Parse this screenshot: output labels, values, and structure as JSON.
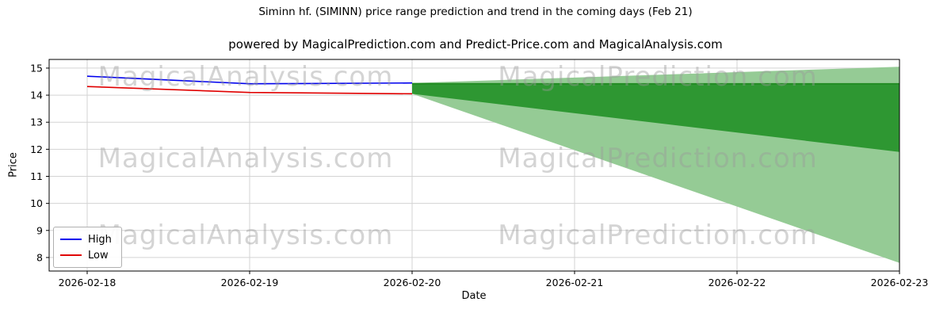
{
  "watermarks": {
    "analysis": "MagicalAnalysis.com",
    "prediction": "MagicalPrediction.com"
  },
  "chart_data": {
    "type": "line",
    "title": "Siminn hf. (SIMINN) price range prediction and trend in the coming days (Feb 21)",
    "subtitle": "powered by MagicalPrediction.com and Predict-Price.com and MagicalAnalysis.com",
    "xlabel": "Date",
    "ylabel": "Price",
    "x_tick_labels": [
      "2026-02-18",
      "2026-02-19",
      "2026-02-20",
      "2026-02-21",
      "2026-02-22",
      "2026-02-23"
    ],
    "y_ticks": [
      8,
      9,
      10,
      11,
      12,
      13,
      14,
      15
    ],
    "ylim": [
      7.5,
      15.32
    ],
    "grid": true,
    "legend_position": "lower left",
    "series": [
      {
        "name": "High",
        "color": "#0000ee",
        "x": [
          0,
          1,
          2
        ],
        "values": [
          14.7,
          14.42,
          14.45
        ]
      },
      {
        "name": "Low",
        "color": "#e00000",
        "x": [
          0,
          1,
          2
        ],
        "values": [
          14.32,
          14.1,
          14.05
        ]
      }
    ],
    "trend_line": {
      "name": "Trend",
      "color": "#1f8a1f",
      "x": [
        2,
        5
      ],
      "values": [
        14.42,
        14.42
      ]
    },
    "bands": [
      {
        "name": "outer-prediction-range",
        "color": "#95cb95",
        "opacity": 1,
        "x": [
          2,
          5
        ],
        "top": [
          14.45,
          15.05
        ],
        "bottom": [
          14.05,
          7.8
        ]
      },
      {
        "name": "inner-prediction-range",
        "color": "#2e9732",
        "opacity": 1,
        "x": [
          2,
          5
        ],
        "top": [
          14.45,
          14.42
        ],
        "bottom": [
          14.05,
          11.9
        ]
      }
    ]
  }
}
